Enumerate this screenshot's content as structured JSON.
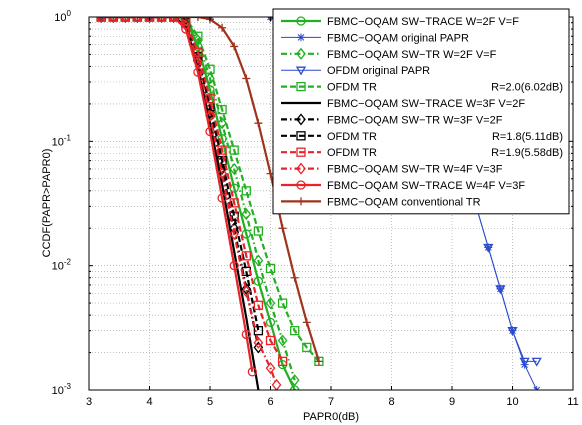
{
  "chart_data": {
    "type": "line",
    "xlabel": "PAPR0(dB)",
    "ylabel": "CCDF(PAPR>PAPR0)",
    "xlim": [
      3,
      11
    ],
    "ylim": [
      0.001,
      1
    ],
    "yscale": "log",
    "grid": true,
    "legend_position": "top-right",
    "x_ticks": [
      "3",
      "4",
      "5",
      "6",
      "7",
      "8",
      "9",
      "10",
      "11"
    ],
    "y_ticks": [
      {
        "base": "10",
        "exp": "0",
        "value": 1
      },
      {
        "base": "10",
        "exp": "-1",
        "value": 0.1
      },
      {
        "base": "10",
        "exp": "-2",
        "value": 0.01
      },
      {
        "base": "10",
        "exp": "-3",
        "value": 0.001
      }
    ],
    "series": [
      {
        "name": "FBMC−OQAM SW−TRACE W=2F V=F",
        "color": "#22b022",
        "dash": "solid",
        "marker": "circle",
        "x": [
          3.2,
          3.4,
          3.6,
          3.8,
          4.0,
          4.2,
          4.4,
          4.6,
          4.8,
          5.0,
          5.2,
          5.4,
          5.6,
          5.8,
          6.0,
          6.2,
          6.4
        ],
        "y": [
          1,
          1,
          1,
          1,
          1,
          1,
          1,
          0.95,
          0.58,
          0.26,
          0.105,
          0.042,
          0.018,
          0.0075,
          0.0035,
          0.0016,
          0.001
        ]
      },
      {
        "name": "FBMC−OQAM original PAPR",
        "color": "#2a4ad0",
        "dash": "solid",
        "marker": "star",
        "x": [
          3.2,
          4.0,
          5.0,
          6.0,
          6.8,
          7.0,
          7.4,
          7.8,
          8.2,
          8.6,
          9.0,
          9.2,
          9.4,
          9.6,
          9.8,
          10.0,
          10.2,
          10.4
        ],
        "y": [
          1,
          1,
          1,
          1,
          0.99,
          0.97,
          0.92,
          0.78,
          0.55,
          0.3,
          0.12,
          0.06,
          0.03,
          0.014,
          0.0065,
          0.003,
          0.0016,
          0.001
        ]
      },
      {
        "name": "FBMC−OQAM SW−TR       W=2F V=F",
        "color": "#22b022",
        "dash": "dashdot",
        "marker": "diamond",
        "x": [
          3.2,
          3.4,
          3.6,
          3.8,
          4.0,
          4.2,
          4.4,
          4.6,
          4.8,
          5.0,
          5.2,
          5.4,
          5.6,
          5.8,
          6.0,
          6.2,
          6.4
        ],
        "y": [
          1,
          1,
          1,
          1,
          1,
          1,
          1,
          0.97,
          0.65,
          0.32,
          0.14,
          0.06,
          0.026,
          0.011,
          0.005,
          0.0025,
          0.0012
        ]
      },
      {
        "name": "OFDM original PAPR",
        "color": "#2a4ad0",
        "dash": "solid",
        "marker": "triangle-down",
        "x": [
          3.2,
          4.0,
          5.0,
          6.0,
          6.8,
          7.0,
          7.4,
          7.8,
          8.2,
          8.6,
          9.0,
          9.2,
          9.4,
          9.6,
          9.8,
          10.0,
          10.2,
          10.4
        ],
        "y": [
          1,
          1,
          1,
          1,
          0.99,
          0.97,
          0.92,
          0.78,
          0.55,
          0.3,
          0.12,
          0.06,
          0.03,
          0.014,
          0.0065,
          0.003,
          0.0017,
          0.0017
        ]
      },
      {
        "name": "OFDM TR",
        "annotation": "R=2.0(6.02dB)",
        "color": "#22b022",
        "dash": "dashed",
        "marker": "square",
        "x": [
          3.2,
          3.4,
          3.6,
          3.8,
          4.0,
          4.2,
          4.4,
          4.6,
          4.8,
          5.0,
          5.2,
          5.4,
          5.6,
          5.8,
          6.0,
          6.2,
          6.4,
          6.6,
          6.8
        ],
        "y": [
          1,
          1,
          1,
          1,
          1,
          1,
          1,
          0.98,
          0.7,
          0.38,
          0.18,
          0.085,
          0.04,
          0.019,
          0.0095,
          0.005,
          0.003,
          0.0022,
          0.0017
        ]
      },
      {
        "name": "FBMC−OQAM SW−TRACE W=3F V=2F",
        "color": "#000000",
        "dash": "solid",
        "marker": "none",
        "x": [
          3.2,
          3.4,
          3.6,
          3.8,
          4.0,
          4.2,
          4.4,
          4.6,
          4.8,
          5.0,
          5.2,
          5.4,
          5.6,
          5.8
        ],
        "y": [
          1,
          1,
          1,
          1,
          1,
          1,
          1,
          0.85,
          0.4,
          0.14,
          0.045,
          0.013,
          0.0038,
          0.001
        ]
      },
      {
        "name": "FBMC−OQAM SW−TR       W=3F V=2F",
        "color": "#000000",
        "dash": "dashdot",
        "marker": "diamond",
        "x": [
          3.2,
          3.4,
          3.6,
          3.8,
          4.0,
          4.2,
          4.4,
          4.6,
          4.8,
          5.0,
          5.2,
          5.4,
          5.6,
          5.8
        ],
        "y": [
          1,
          1,
          1,
          1,
          1,
          1,
          1,
          0.88,
          0.45,
          0.17,
          0.06,
          0.02,
          0.0065,
          0.0022
        ]
      },
      {
        "name": "OFDM TR",
        "annotation": "R=1.8(5.11dB)",
        "color": "#000000",
        "dash": "dashed",
        "marker": "square",
        "x": [
          3.2,
          3.4,
          3.6,
          3.8,
          4.0,
          4.2,
          4.4,
          4.6,
          4.8,
          5.0,
          5.2,
          5.4,
          5.6,
          5.8
        ],
        "y": [
          1,
          1,
          1,
          1,
          1,
          1,
          1,
          0.9,
          0.48,
          0.19,
          0.07,
          0.025,
          0.009,
          0.003
        ]
      },
      {
        "name": "OFDM TR",
        "annotation": "R=1.9(5.58dB)",
        "color": "#e8242a",
        "dash": "dashed",
        "marker": "square",
        "x": [
          3.2,
          3.4,
          3.6,
          3.8,
          4.0,
          4.2,
          4.4,
          4.6,
          4.8,
          5.0,
          5.2,
          5.4,
          5.6,
          5.8,
          6.0,
          6.2
        ],
        "y": [
          1,
          1,
          1,
          1,
          1,
          1,
          1,
          0.92,
          0.52,
          0.22,
          0.085,
          0.032,
          0.012,
          0.0048,
          0.0025,
          0.0017
        ]
      },
      {
        "name": "FBMC−OQAM SW−TR       W=4F V=3F",
        "color": "#e8242a",
        "dash": "dashdot",
        "marker": "diamond",
        "x": [
          3.2,
          3.4,
          3.6,
          3.8,
          4.0,
          4.2,
          4.4,
          4.6,
          4.8,
          5.0,
          5.2,
          5.4,
          5.6,
          5.8,
          6.0,
          6.1
        ],
        "y": [
          1,
          1,
          1,
          1,
          1,
          1,
          1,
          0.86,
          0.44,
          0.16,
          0.055,
          0.018,
          0.0062,
          0.0024,
          0.0015,
          0.0011
        ]
      },
      {
        "name": "FBMC−OQAM SW−TRACE W=4F V=3F",
        "color": "#e8242a",
        "dash": "solid",
        "marker": "circle",
        "x": [
          3.2,
          3.4,
          3.6,
          3.8,
          4.0,
          4.2,
          4.4,
          4.6,
          4.8,
          5.0,
          5.2,
          5.4,
          5.6,
          5.7
        ],
        "y": [
          1,
          1,
          1,
          1,
          1,
          1,
          1,
          0.8,
          0.36,
          0.12,
          0.035,
          0.01,
          0.0028,
          0.0014
        ]
      },
      {
        "name": "FBMC−OQAM conventional TR",
        "color": "#a0321e",
        "dash": "solid",
        "marker": "plus",
        "x": [
          3.2,
          3.4,
          3.6,
          3.8,
          4.0,
          4.2,
          4.4,
          4.6,
          4.8,
          5.0,
          5.2,
          5.4,
          5.6,
          5.8,
          6.0,
          6.2,
          6.4,
          6.6,
          6.8
        ],
        "y": [
          1,
          1,
          1,
          1,
          1,
          1,
          1,
          1,
          1,
          0.96,
          0.82,
          0.58,
          0.32,
          0.14,
          0.055,
          0.02,
          0.008,
          0.0035,
          0.0017
        ]
      }
    ]
  }
}
